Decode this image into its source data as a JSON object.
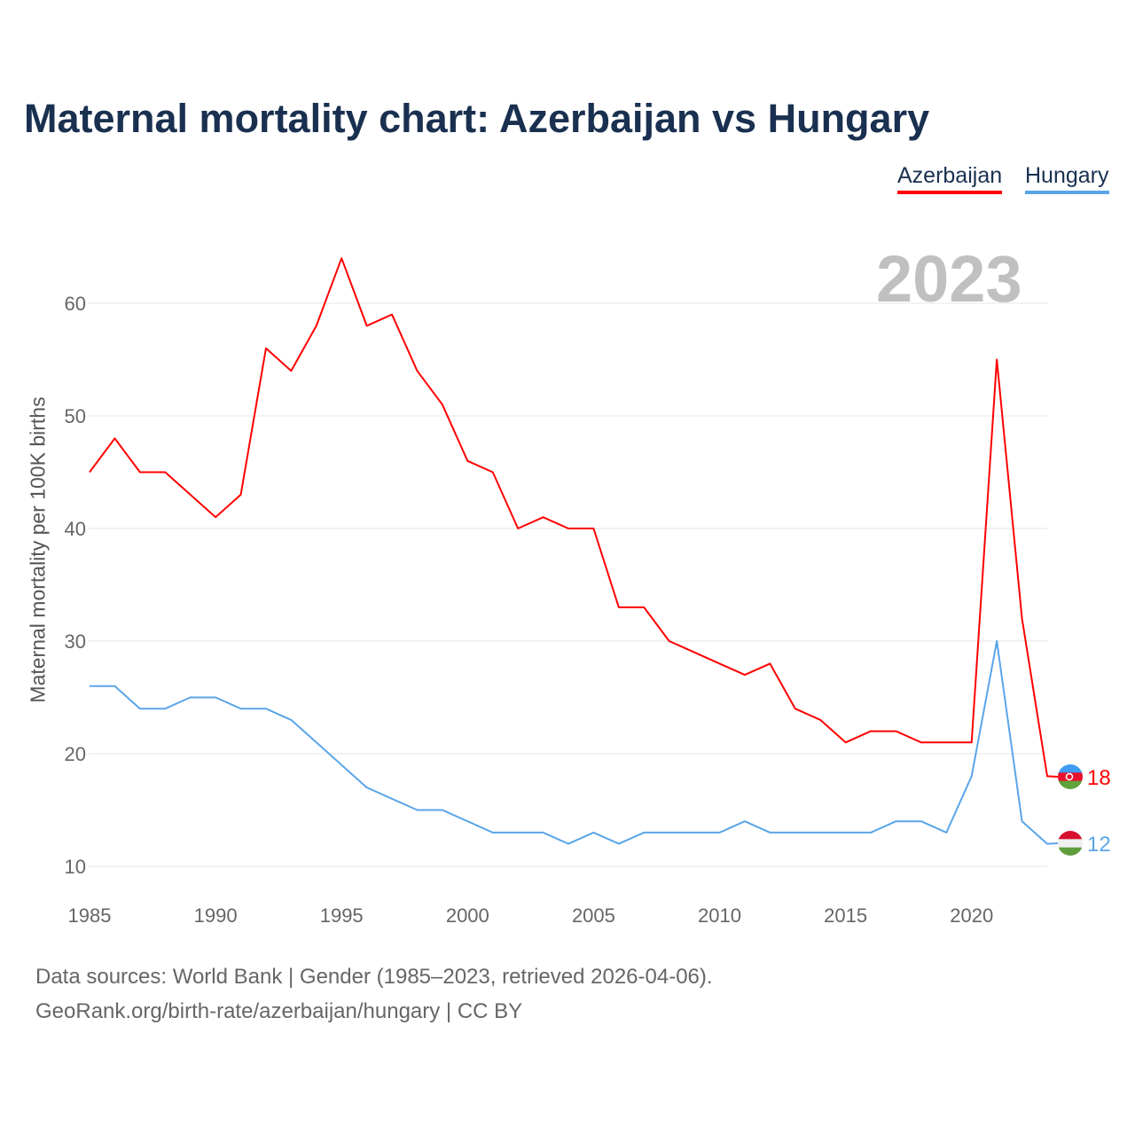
{
  "chart_data": {
    "type": "line",
    "title": "Maternal mortality chart: Azerbaijan vs Hungary",
    "ylabel": "Maternal mortality per 100K births",
    "xlabel": "",
    "current_year": "2023",
    "xlim": [
      1985,
      2023
    ],
    "ylim": [
      10,
      60
    ],
    "xticks": [
      1985,
      1990,
      1995,
      2000,
      2005,
      2010,
      2015,
      2020
    ],
    "yticks": [
      10,
      20,
      30,
      40,
      50,
      60
    ],
    "grid": true,
    "legend_position": "top-right",
    "x": [
      1985,
      1986,
      1987,
      1988,
      1989,
      1990,
      1991,
      1992,
      1993,
      1994,
      1995,
      1996,
      1997,
      1998,
      1999,
      2000,
      2001,
      2002,
      2003,
      2004,
      2005,
      2006,
      2007,
      2008,
      2009,
      2010,
      2011,
      2012,
      2013,
      2014,
      2015,
      2016,
      2017,
      2018,
      2019,
      2020,
      2021,
      2022,
      2023
    ],
    "series": [
      {
        "name": "Azerbaijan",
        "color": "#ff0000",
        "end_label": "18",
        "values": [
          45,
          48,
          45,
          45,
          43,
          41,
          43,
          56,
          54,
          58,
          64,
          58,
          59,
          54,
          51,
          46,
          45,
          40,
          41,
          40,
          40,
          33,
          33,
          30,
          29,
          28,
          27,
          28,
          24,
          23,
          21,
          22,
          22,
          21,
          21,
          21,
          55,
          32,
          18
        ]
      },
      {
        "name": "Hungary",
        "color": "#5aa5e8",
        "end_label": "12",
        "values": [
          26,
          26,
          24,
          24,
          25,
          25,
          24,
          24,
          23,
          21,
          19,
          17,
          16,
          15,
          15,
          14,
          13,
          13,
          13,
          12,
          13,
          12,
          13,
          13,
          13,
          13,
          14,
          13,
          13,
          13,
          13,
          13,
          14,
          14,
          13,
          18,
          30,
          14,
          12
        ]
      }
    ]
  },
  "footer": {
    "line1": "Data sources: World Bank | Gender (1985–2023, retrieved 2026-04-06).",
    "line2": "GeoRank.org/birth-rate/azerbaijan/hungary | CC BY"
  }
}
